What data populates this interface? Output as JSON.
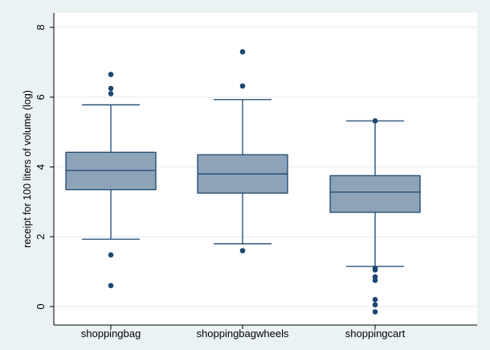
{
  "chart_data": {
    "type": "box",
    "title": "",
    "xlabel": "",
    "ylabel": "receipt for 100 liters of volume (log)",
    "ylim": [
      -0.55,
      8.4
    ],
    "yticks": [
      0,
      2,
      4,
      6,
      8
    ],
    "grid": "horizontal",
    "categories": [
      "shoppingbag",
      "shoppingbagwheels",
      "shoppingcart"
    ],
    "boxes": [
      {
        "category": "shoppingbag",
        "whisker_low": 1.93,
        "q1": 3.35,
        "median": 3.9,
        "q3": 4.42,
        "whisker_high": 5.78,
        "outliers": [
          0.6,
          1.48,
          6.1,
          6.25,
          6.65
        ]
      },
      {
        "category": "shoppingbagwheels",
        "whisker_low": 1.8,
        "q1": 3.25,
        "median": 3.8,
        "q3": 4.35,
        "whisker_high": 5.93,
        "outliers": [
          1.6,
          6.32,
          7.3
        ]
      },
      {
        "category": "shoppingcart",
        "whisker_low": 1.15,
        "q1": 2.7,
        "median": 3.28,
        "q3": 3.75,
        "whisker_high": 5.32,
        "outliers": [
          -0.15,
          0.05,
          0.2,
          0.75,
          0.85,
          1.05,
          1.1,
          5.32
        ]
      }
    ],
    "colors": {
      "outer_background": "#eaf2f3",
      "plot_background": "#ffffff",
      "box_fill": "#8ea2b8",
      "line": "#1a476f",
      "grid": "#e5eaee",
      "axis": "#000000"
    }
  }
}
